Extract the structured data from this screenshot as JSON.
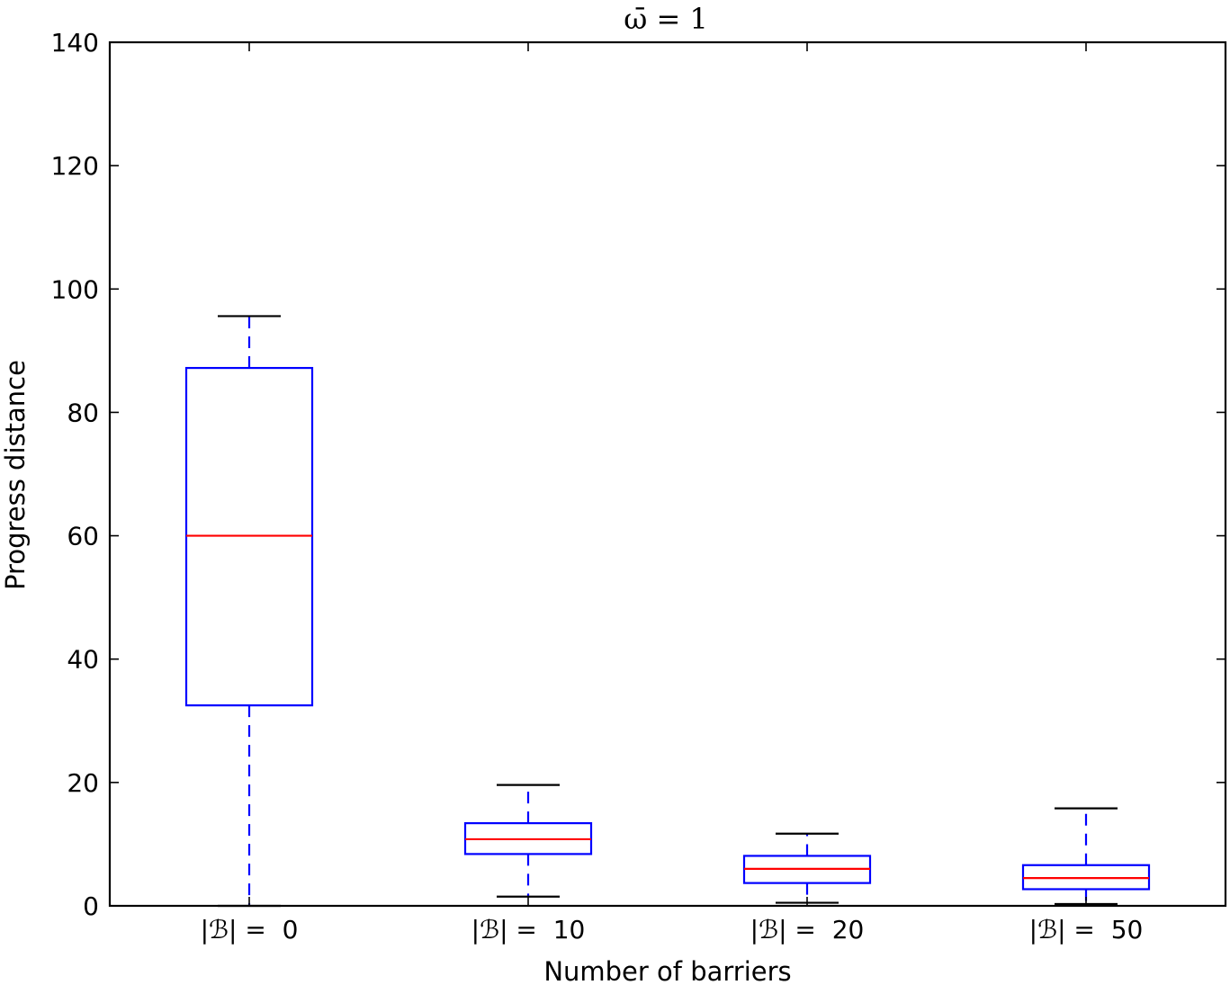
{
  "chart_data": {
    "type": "box",
    "title": "ω̄ = 1",
    "xlabel": "Number of barriers",
    "ylabel": "Progress distance",
    "ylim": [
      0,
      140
    ],
    "yticks": [
      0,
      20,
      40,
      60,
      80,
      100,
      120,
      140
    ],
    "categories": [
      "|ℬ| =  0",
      "|ℬ| =  10",
      "|ℬ| =  20",
      "|ℬ| =  50"
    ],
    "boxes": [
      {
        "whisker_low": 0.0,
        "q1": 32.5,
        "median": 60.0,
        "q3": 87.2,
        "whisker_high": 95.6
      },
      {
        "whisker_low": 1.5,
        "q1": 8.4,
        "median": 10.8,
        "q3": 13.4,
        "whisker_high": 19.6
      },
      {
        "whisker_low": 0.5,
        "q1": 3.7,
        "median": 6.0,
        "q3": 8.1,
        "whisker_high": 11.7
      },
      {
        "whisker_low": 0.3,
        "q1": 2.7,
        "median": 4.5,
        "q3": 6.6,
        "whisker_high": 15.8
      }
    ],
    "colors": {
      "box": "#0000ff",
      "median": "#ff0000",
      "cap": "#000000"
    },
    "grid": false
  }
}
